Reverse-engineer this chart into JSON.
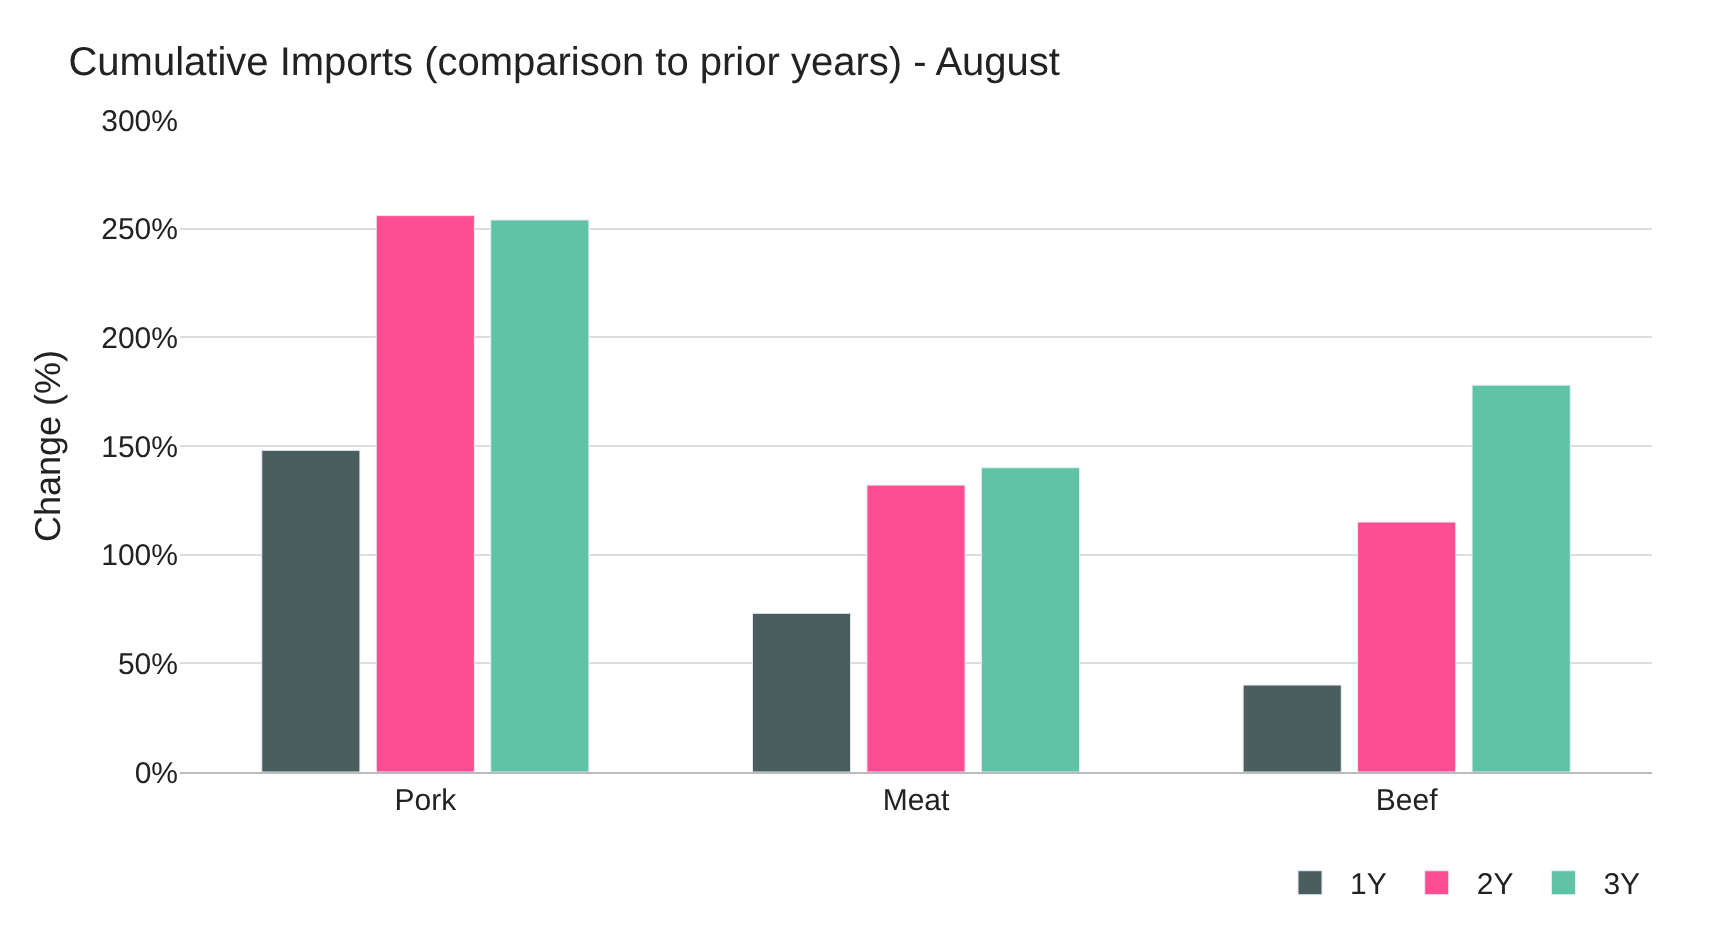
{
  "chart_data": {
    "type": "bar",
    "title": "Cumulative Imports (comparison to prior years) - August",
    "ylabel": "Change (%)",
    "categories": [
      "Pork",
      "Meat",
      "Beef"
    ],
    "series": [
      {
        "name": "1Y",
        "color": "#4a5e5e",
        "values": [
          148,
          73,
          40
        ]
      },
      {
        "name": "2Y",
        "color": "#ff4d94",
        "values": [
          256,
          132,
          115
        ]
      },
      {
        "name": "3Y",
        "color": "#5ec4a5",
        "values": [
          254,
          140,
          178
        ]
      }
    ],
    "ylim": [
      0,
      300
    ],
    "yticks": [
      {
        "value": 0,
        "label": "0%"
      },
      {
        "value": 50,
        "label": "50%"
      },
      {
        "value": 100,
        "label": "100%"
      },
      {
        "value": 150,
        "label": "150%"
      },
      {
        "value": 200,
        "label": "200%"
      },
      {
        "value": 250,
        "label": "250%"
      },
      {
        "value": 300,
        "label": "300%"
      }
    ],
    "grid": "y",
    "legend": "bottom right"
  }
}
